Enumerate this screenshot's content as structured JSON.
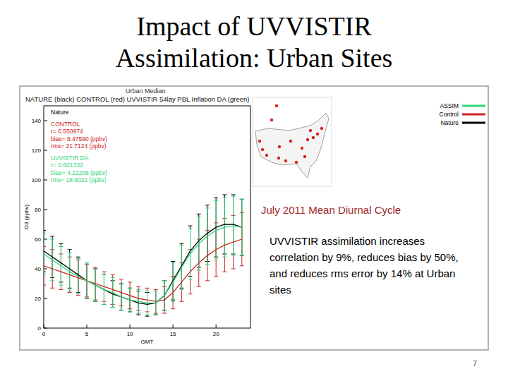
{
  "page": {
    "title": [
      "Impact of UVVISTIR",
      "Assimilation: Urban Sites"
    ],
    "caption": "July 2011 Mean Diurnal Cycle",
    "summary": [
      "UVVISTIR assimilation increases",
      "correlation by 9%, reduces bias by 50%,",
      "and reduces rms error by 14% at Urban",
      "sites"
    ],
    "page_number": "7"
  },
  "chart_data": {
    "type": "line",
    "title": "Urban Median",
    "subtitle": "NATURE (black) CONTROL (red) UVVISTIR 54lay PBL Inflation DA (green)",
    "x_label": "GMT",
    "y_label": "O3 (ppbv)",
    "x": [
      0,
      1,
      2,
      3,
      4,
      5,
      6,
      7,
      8,
      9,
      10,
      11,
      12,
      13,
      14,
      15,
      16,
      17,
      18,
      19,
      20,
      21,
      22,
      23
    ],
    "xlim": [
      0,
      24
    ],
    "xticks": [
      0,
      5,
      10,
      15,
      20
    ],
    "ylim": [
      0,
      150
    ],
    "yticks": [
      0,
      20,
      40,
      60,
      80,
      100,
      120,
      140
    ],
    "legend": "top-right",
    "series": [
      {
        "name": "Nature",
        "color": "#000000",
        "values": [
          52,
          48,
          44,
          40,
          36,
          32,
          29,
          26,
          23,
          21,
          19,
          17,
          16,
          17,
          22,
          32,
          42,
          52,
          59,
          64,
          68,
          70,
          70,
          68
        ],
        "errors": [
          14,
          14,
          13,
          13,
          12,
          12,
          11,
          10,
          9,
          9,
          8,
          8,
          8,
          8,
          10,
          13,
          15,
          17,
          18,
          19,
          20,
          20,
          20,
          19
        ]
      },
      {
        "name": "Control",
        "color": "#cc2222",
        "values": [
          42,
          40,
          38,
          36,
          34,
          32,
          30,
          28,
          26,
          24,
          22,
          20,
          19,
          18,
          19,
          24,
          31,
          38,
          44,
          49,
          53,
          56,
          58,
          60
        ],
        "errors": [
          13,
          13,
          12,
          12,
          12,
          11,
          11,
          10,
          10,
          9,
          9,
          8,
          8,
          8,
          9,
          11,
          13,
          15,
          16,
          17,
          18,
          18,
          18,
          18
        ]
      },
      {
        "name": "ASSIM",
        "color": "#2fd67a",
        "values": [
          50,
          46,
          42,
          38,
          35,
          32,
          29,
          26,
          24,
          21,
          19,
          18,
          17,
          17,
          22,
          31,
          41,
          50,
          57,
          62,
          66,
          68,
          69,
          68
        ],
        "errors": [
          14,
          14,
          13,
          13,
          12,
          12,
          11,
          10,
          10,
          9,
          8,
          8,
          8,
          8,
          10,
          13,
          15,
          17,
          18,
          19,
          20,
          20,
          20,
          19
        ]
      }
    ],
    "annotations": [
      {
        "color": "#000000",
        "lines": [
          "Nature"
        ]
      },
      {
        "color": "#cc2222",
        "lines": [
          "CONTROL",
          "r= 0.550974",
          "bias= 8.47590 (ppbv)",
          "rms= 21.7124 (ppbv)"
        ]
      },
      {
        "color": "#2fd67a",
        "lines": [
          "UVVISTIR DA",
          "r= 0.601332",
          "bias= 4.22206 (ppbv)",
          "rms= 18.6021 (ppbv)"
        ]
      }
    ]
  }
}
